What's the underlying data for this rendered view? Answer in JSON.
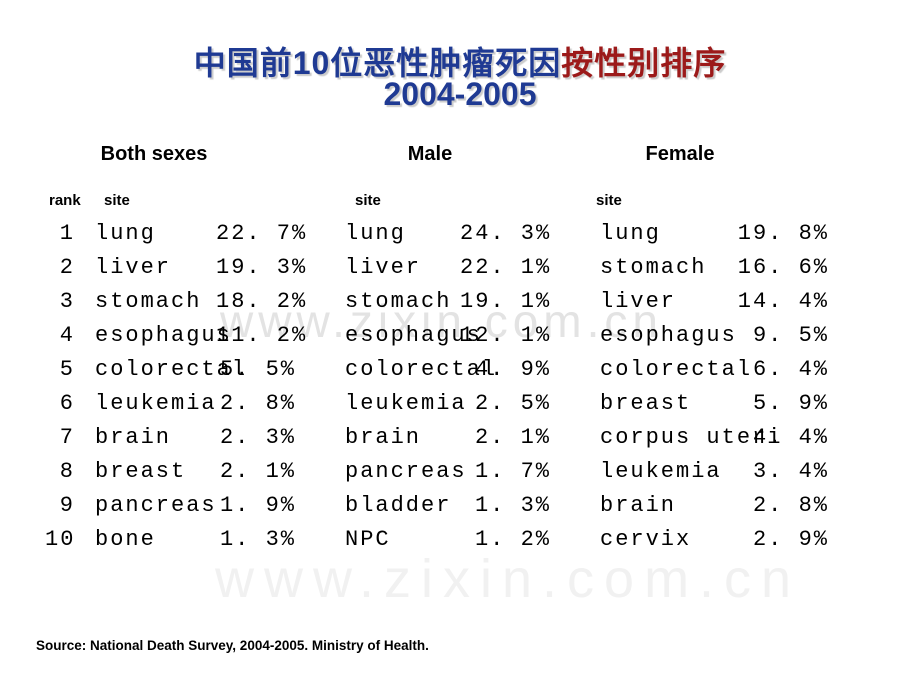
{
  "title": {
    "part_blue": "中国前10位恶性肿瘤死因",
    "part_red": "按性别排序",
    "line2": "2004-2005"
  },
  "colors": {
    "title_blue": "#1f3a93",
    "title_red": "#9c1a1a",
    "body_text": "#000000",
    "watermark_mid": "#e3e3e3",
    "watermark_bottom": "#f1f1f1",
    "background": "#ffffff"
  },
  "group_headers": {
    "both": "Both sexes",
    "male": "Male",
    "female": "Female"
  },
  "columns": {
    "rank": "rank",
    "site": "site"
  },
  "table": {
    "rows": [
      {
        "rank": "1",
        "both_site": "lung",
        "both_pct": "22. 7%",
        "male_site": "lung",
        "male_pct": "24. 3%",
        "female_site": "lung",
        "female_pct": "19. 8%"
      },
      {
        "rank": "2",
        "both_site": "liver",
        "both_pct": "19. 3%",
        "male_site": "liver",
        "male_pct": "22. 1%",
        "female_site": "stomach",
        "female_pct": "16. 6%"
      },
      {
        "rank": "3",
        "both_site": "stomach",
        "both_pct": "18. 2%",
        "male_site": "stomach",
        "male_pct": "19. 1%",
        "female_site": "liver",
        "female_pct": "14. 4%"
      },
      {
        "rank": "4",
        "both_site": "esophagus",
        "both_pct": "11. 2%",
        "male_site": "esophagus",
        "male_pct": "12. 1%",
        "female_site": "esophagus",
        "female_pct": "9. 5%"
      },
      {
        "rank": "5",
        "both_site": "colorectal",
        "both_pct": "5. 5%",
        "male_site": "colorectal",
        "male_pct": "4. 9%",
        "female_site": "colorectal",
        "female_pct": "6. 4%"
      },
      {
        "rank": "6",
        "both_site": "leukemia",
        "both_pct": "2. 8%",
        "male_site": "leukemia",
        "male_pct": "2. 5%",
        "female_site": "breast",
        "female_pct": "5. 9%"
      },
      {
        "rank": "7",
        "both_site": "brain",
        "both_pct": "2. 3%",
        "male_site": "brain",
        "male_pct": "2. 1%",
        "female_site": "corpus uteri",
        "female_pct": "4. 4%"
      },
      {
        "rank": "8",
        "both_site": "breast",
        "both_pct": "2. 1%",
        "male_site": "pancreas",
        "male_pct": "1. 7%",
        "female_site": "leukemia",
        "female_pct": "3. 4%"
      },
      {
        "rank": "9",
        "both_site": "pancreas",
        "both_pct": "1. 9%",
        "male_site": "bladder",
        "male_pct": "1. 3%",
        "female_site": "brain",
        "female_pct": "2. 8%"
      },
      {
        "rank": "10",
        "both_site": "bone",
        "both_pct": "1. 3%",
        "male_site": "NPC",
        "male_pct": "1. 2%",
        "female_site": "cervix",
        "female_pct": "2. 9%"
      }
    ]
  },
  "watermark": {
    "text": "www.zixin.com.cn"
  },
  "source": "Source: National Death Survey, 2004-2005. Ministry of Health."
}
